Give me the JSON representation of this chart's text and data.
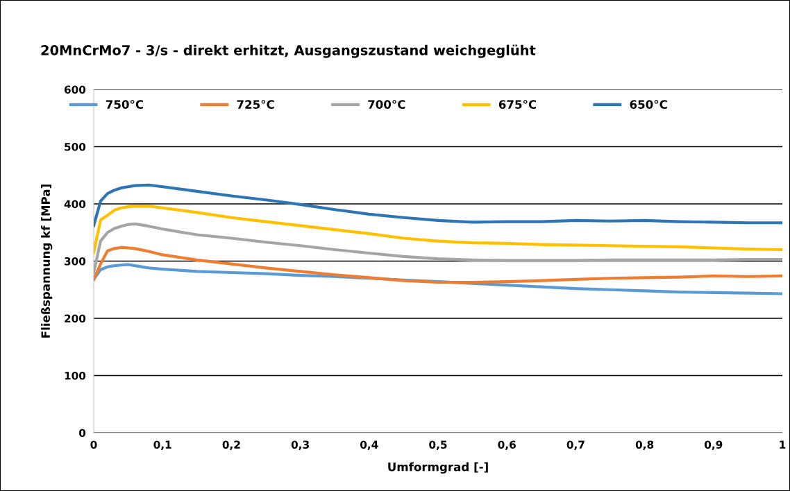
{
  "chart_data": {
    "type": "line",
    "title": "20MnCrMo7 - 3/s - direkt erhitzt, Ausgangszustand weichgeglüht",
    "xlabel": "Umformgrad [-]",
    "ylabel": "Fließspannung kf [MPa]",
    "x": [
      0,
      0.01,
      0.02,
      0.03,
      0.04,
      0.05,
      0.06,
      0.08,
      0.1,
      0.15,
      0.2,
      0.25,
      0.3,
      0.35,
      0.4,
      0.45,
      0.5,
      0.55,
      0.6,
      0.65,
      0.7,
      0.75,
      0.8,
      0.85,
      0.9,
      0.95,
      1.0
    ],
    "series": [
      {
        "name": "750°C",
        "color": "#5b9bd5",
        "values": [
          268,
          285,
          290,
          292,
          293,
          294,
          292,
          288,
          286,
          282,
          280,
          278,
          275,
          273,
          270,
          267,
          264,
          261,
          258,
          255,
          252,
          250,
          248,
          246,
          245,
          244,
          243
        ]
      },
      {
        "name": "725°C",
        "color": "#ed7d31",
        "values": [
          268,
          295,
          318,
          322,
          324,
          323,
          322,
          317,
          311,
          302,
          295,
          288,
          282,
          276,
          271,
          266,
          263,
          263,
          264,
          266,
          268,
          270,
          271,
          272,
          274,
          273,
          274
        ]
      },
      {
        "name": "700°C",
        "color": "#a5a5a5",
        "values": [
          280,
          335,
          350,
          357,
          361,
          364,
          365,
          361,
          356,
          346,
          340,
          333,
          327,
          320,
          314,
          308,
          304,
          302,
          301,
          301,
          301,
          302,
          302,
          302,
          302,
          303,
          303
        ]
      },
      {
        "name": "675°C",
        "color": "#ffc000",
        "values": [
          315,
          372,
          380,
          389,
          393,
          395,
          396,
          396,
          393,
          385,
          376,
          369,
          362,
          355,
          348,
          340,
          335,
          332,
          331,
          329,
          328,
          327,
          326,
          325,
          323,
          321,
          320
        ]
      },
      {
        "name": "650°C",
        "color": "#2e75b6",
        "values": [
          362,
          405,
          418,
          424,
          428,
          430,
          432,
          433,
          430,
          422,
          414,
          407,
          399,
          390,
          382,
          376,
          371,
          368,
          369,
          369,
          371,
          370,
          371,
          369,
          368,
          367,
          367
        ]
      }
    ],
    "xlim": [
      0,
      1
    ],
    "xticks": [
      0,
      {
        "value": 0.1,
        "label": "0,1"
      },
      {
        "value": 0.2,
        "label": "0,2"
      },
      {
        "value": 0.3,
        "label": "0,3"
      },
      {
        "value": 0.4,
        "label": "0,4"
      },
      {
        "value": 0.5,
        "label": "0,5"
      },
      {
        "value": 0.6,
        "label": "0,6"
      },
      {
        "value": 0.7,
        "label": "0,7"
      },
      {
        "value": 0.8,
        "label": "0,8"
      },
      {
        "value": 0.9,
        "label": "0,9"
      },
      1
    ],
    "ylim": [
      0,
      600
    ],
    "yticks": [
      0,
      100,
      200,
      300,
      400,
      500,
      600
    ],
    "grid": "y",
    "legend": "top",
    "marker": "none",
    "line_style": "solid"
  }
}
